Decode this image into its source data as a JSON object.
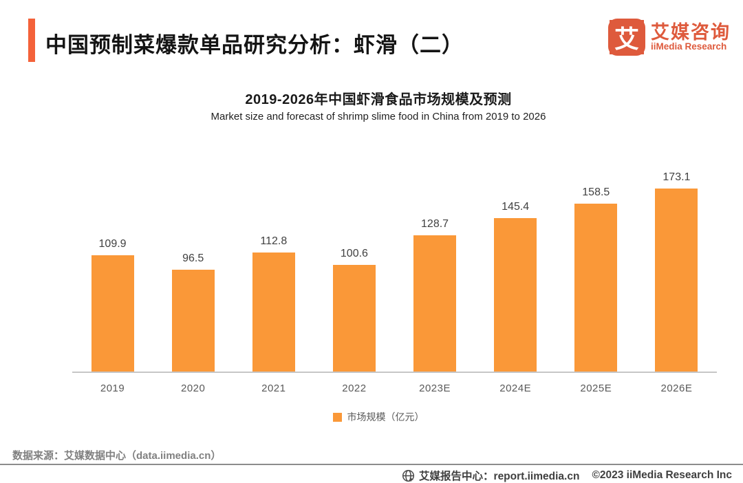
{
  "header": {
    "title": "中国预制菜爆款单品研究分析：虾滑（二）",
    "logo": {
      "glyph": "艾",
      "name_cn": "艾媒咨询",
      "name_en": "iiMedia Research"
    }
  },
  "chart": {
    "title": "2019-2026年中国虾滑食品市场规模及预测",
    "subtitle": "Market size and forecast of shrimp slime food in China from 2019 to 2026",
    "legend_label": "市场规模（亿元）"
  },
  "chart_data": {
    "type": "bar",
    "categories": [
      "2019",
      "2020",
      "2021",
      "2022",
      "2023E",
      "2024E",
      "2025E",
      "2026E"
    ],
    "values": [
      109.9,
      96.5,
      112.8,
      100.6,
      128.7,
      145.4,
      158.5,
      173.1
    ],
    "title": "2019-2026年中国虾滑食品市场规模及预测",
    "subtitle": "Market size and forecast of shrimp slime food in China from 2019 to 2026",
    "xlabel": "",
    "ylabel": "市场规模（亿元）",
    "ylim": [
      0,
      190
    ],
    "legend": [
      "市场规模（亿元）"
    ],
    "legend_position": "bottom",
    "grid": false,
    "data_labels": true,
    "bar_color": "#FA9838"
  },
  "footer": {
    "source": "数据来源：艾媒数据中心（data.iimedia.cn）",
    "report_center": "艾媒报告中心：report.iimedia.cn",
    "copyright": "©2023  iiMedia Research  Inc"
  },
  "colors": {
    "bar": "#FA9838",
    "brand": "#DE5A3C",
    "accent": "#F4623A"
  }
}
